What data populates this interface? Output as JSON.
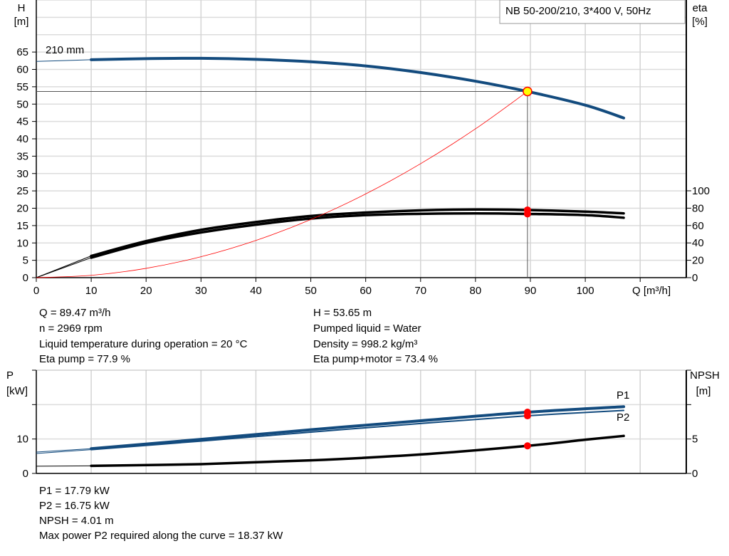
{
  "chart_data": [
    {
      "type": "line",
      "title": "NB 50-200/210, 3*400 V, 50Hz",
      "xlabel": "Q [m³/h]",
      "ylabel_left": [
        "H",
        "[m]"
      ],
      "ylabel_right": [
        "eta",
        "[%]"
      ],
      "xlim": [
        0,
        118.4
      ],
      "ylim_left": [
        0,
        80
      ],
      "ylim_right": [
        0,
        100
      ],
      "x_ticks": [
        "0",
        "10",
        "20",
        "30",
        "40",
        "50",
        "60",
        "70",
        "80",
        "90",
        "100"
      ],
      "y_ticks_left": [
        "0",
        "5",
        "10",
        "15",
        "20",
        "25",
        "30",
        "35",
        "40",
        "45",
        "50",
        "55",
        "60",
        "65"
      ],
      "y_ticks_right": [
        "0",
        "20",
        "40",
        "60",
        "80",
        "100"
      ],
      "grid": true,
      "curve_label": "210 mm",
      "series": [
        {
          "name": "210 mm",
          "axis": "left",
          "color": "#134b7e",
          "x": [
            0,
            10,
            20,
            30,
            40,
            50,
            60,
            70,
            80,
            89.47,
            100,
            107
          ],
          "y": [
            62.3,
            62.8,
            63.1,
            63.2,
            62.9,
            62.2,
            61.0,
            59.1,
            56.6,
            53.65,
            49.7,
            46.0
          ]
        },
        {
          "axis": "right",
          "color": "#000000",
          "x": [
            0,
            10,
            20,
            30,
            40,
            50,
            60,
            70,
            80,
            89.47,
            100,
            107
          ],
          "y": [
            0,
            25,
            42,
            55,
            64,
            71,
            75,
            77.5,
            78.5,
            77.9,
            76,
            74
          ]
        },
        {
          "axis": "right",
          "color": "#000000",
          "x": [
            0,
            10,
            20,
            30,
            40,
            50,
            60,
            70,
            80,
            89.47,
            100,
            107
          ],
          "y": [
            0,
            23,
            40,
            52,
            61,
            68,
            72,
            73.5,
            74,
            73.4,
            72,
            69
          ]
        },
        {
          "axis": "left",
          "color": "#ff0000",
          "x": [
            0,
            10,
            20,
            30,
            40,
            50,
            60,
            70,
            80,
            89.47
          ],
          "y": [
            0,
            0.67,
            2.68,
            6.03,
            10.72,
            16.75,
            24.12,
            32.83,
            42.88,
            53.65
          ]
        }
      ],
      "operating_point": {
        "Q": 89.47,
        "H": 53.65,
        "eta_pump": 77.9,
        "eta_pump_motor": 73.4
      }
    },
    {
      "type": "line",
      "xlim": [
        0,
        118.4
      ],
      "ylabel_left": [
        "P",
        "[kW]"
      ],
      "ylabel_right": [
        "NPSH",
        "[m]"
      ],
      "ylim_left": [
        0,
        30
      ],
      "ylim_right": [
        0,
        15
      ],
      "y_ticks_left": [
        "0",
        "10"
      ],
      "y_ticks_right": [
        "0",
        "5"
      ],
      "grid": true,
      "series": [
        {
          "name": "P1",
          "axis": "left",
          "color": "#134b7e",
          "x": [
            0,
            10,
            30,
            50,
            70,
            89.47,
            107
          ],
          "y": [
            6.2,
            7.2,
            9.9,
            12.7,
            15.3,
            17.79,
            19.4
          ]
        },
        {
          "name": "P2",
          "axis": "left",
          "color": "#134b7e",
          "x": [
            0,
            10,
            30,
            50,
            70,
            89.47,
            107
          ],
          "y": [
            5.8,
            6.9,
            9.4,
            12.0,
            14.5,
            16.75,
            18.3
          ]
        },
        {
          "axis": "right",
          "color": "#000000",
          "x": [
            0,
            10,
            30,
            50,
            70,
            89.47,
            100,
            107
          ],
          "y": [
            1.05,
            1.1,
            1.35,
            1.9,
            2.75,
            4.01,
            4.9,
            5.45
          ]
        }
      ],
      "operating_point": {
        "Q": 89.47,
        "P1": 17.79,
        "P2": 16.75,
        "NPSH": 4.01
      }
    }
  ],
  "info_top": {
    "left": [
      "Q = 89.47 m³/h",
      "n = 2969 rpm",
      "Liquid temperature during operation = 20 °C",
      "Eta pump = 77.9 %"
    ],
    "right": [
      "H = 53.65 m",
      "Pumped liquid = Water",
      "Density = 998.2 kg/m³",
      "Eta pump+motor = 73.4 %"
    ]
  },
  "info_bottom": [
    "P1 = 17.79 kW",
    "P2 = 16.75 kW",
    "NPSH = 4.01 m",
    "Max power P2 required along the curve = 18.37 kW"
  ]
}
